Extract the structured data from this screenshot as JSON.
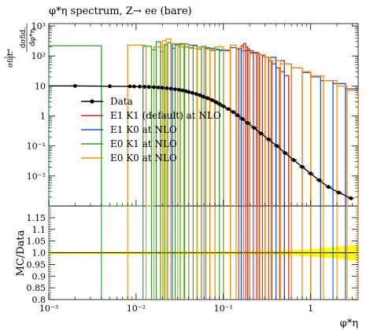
{
  "chart_data": [
    {
      "type": "step-histogram",
      "panel": "main",
      "title": "φ*η spectrum, Z→ ee (bare)",
      "ylabel_num": "1",
      "ylabel_den": "σfid.",
      "ylabel_frac_num": "dσfid.",
      "ylabel_frac_den": "dφ*η",
      "xscale": "log",
      "yscale": "log",
      "xlim": [
        0.001,
        3.5
      ],
      "ylim": [
        0.001,
        1200
      ],
      "x_ticks": [
        {
          "value": 0.001,
          "label": "10⁻³"
        },
        {
          "value": 0.01,
          "label": "10⁻²"
        },
        {
          "value": 0.1,
          "label": "10⁻¹"
        },
        {
          "value": 1,
          "label": "1"
        }
      ],
      "y_ticks": [
        {
          "value": 0.01,
          "label": "10⁻²"
        },
        {
          "value": 0.1,
          "label": "10⁻¹"
        },
        {
          "value": 1,
          "label": "1"
        },
        {
          "value": 10,
          "label": "10"
        },
        {
          "value": 100,
          "label": "10²"
        },
        {
          "value": 1000,
          "label": "10³"
        }
      ],
      "legend": [
        {
          "name": "Data",
          "color": "#000000",
          "marker": "dot"
        },
        {
          "name": "E1 K1 (default) at NLO",
          "color": "#e41a1c"
        },
        {
          "name": "E1 K0 at NLO",
          "color": "#1f4fe0"
        },
        {
          "name": "E0 K1 at NLO",
          "color": "#2ca02c"
        },
        {
          "name": "E0 K0 at NLO",
          "color": "#ff8c00"
        }
      ],
      "legend_position": "center-left",
      "data": {
        "x": [
          0.002,
          0.005,
          0.0085,
          0.0095,
          0.011,
          0.0125,
          0.014,
          0.016,
          0.018,
          0.02,
          0.0225,
          0.025,
          0.028,
          0.031,
          0.034,
          0.037,
          0.04,
          0.044,
          0.049,
          0.054,
          0.059,
          0.066,
          0.074,
          0.082,
          0.09,
          0.1,
          0.114,
          0.13,
          0.145,
          0.165,
          0.19,
          0.225,
          0.27,
          0.33,
          0.41,
          0.51,
          0.64,
          0.8,
          1.0,
          1.25,
          1.6,
          2.1,
          2.9
        ],
        "y": [
          10,
          9.8,
          9.7,
          9.6,
          9.5,
          9.4,
          9.3,
          9.1,
          8.9,
          8.7,
          8.4,
          8.1,
          7.8,
          7.5,
          7.1,
          6.7,
          6.3,
          5.9,
          5.4,
          4.9,
          4.4,
          3.9,
          3.4,
          2.9,
          2.5,
          2.1,
          1.7,
          1.35,
          1.05,
          0.8,
          0.58,
          0.4,
          0.26,
          0.165,
          0.1,
          0.058,
          0.034,
          0.02,
          0.012,
          0.0072,
          0.0043,
          0.0028,
          0.0018
        ]
      },
      "series": [
        {
          "name": "E1 K1 (default) at NLO",
          "color": "#e41a1c",
          "bins": [
            0.15,
            0.16,
            0.17,
            0.18,
            0.19,
            0.2,
            0.22,
            0.24,
            0.26,
            0.28,
            0.3,
            0.33,
            0.36,
            0.4,
            0.44,
            0.5,
            0.56
          ],
          "values": [
            180,
            220,
            260,
            200,
            170,
            150,
            130,
            120,
            110,
            100,
            90,
            70,
            55,
            40,
            30,
            22,
            16
          ]
        },
        {
          "name": "E1 K0 at NLO",
          "color": "#1f4fe0",
          "bins": [
            0.026,
            0.04,
            0.05,
            0.06,
            0.08,
            0.1,
            0.12,
            0.14,
            0.16,
            0.2,
            0.25,
            0.3,
            0.4,
            0.5,
            0.6,
            0.8,
            1.0,
            1.3,
            1.8,
            2.5,
            3.5
          ],
          "values": [
            250,
            230,
            200,
            180,
            160,
            150,
            190,
            170,
            150,
            130,
            110,
            90,
            70,
            55,
            40,
            28,
            20,
            15,
            12,
            8
          ]
        },
        {
          "name": "E0 K1 at NLO",
          "color": "#2ca02c",
          "bins": [
            0.001,
            0.004,
            0.012,
            0.015,
            0.017,
            0.019,
            0.021,
            0.023,
            0.025,
            0.028,
            0.032,
            0.036,
            0.04,
            0.045,
            0.05,
            0.056,
            0.063,
            0.07,
            0.08,
            0.09,
            0.1
          ],
          "values": [
            220,
            0.001,
            210,
            160,
            300,
            140,
            240,
            280,
            180,
            230,
            260,
            200,
            190,
            220,
            170,
            210,
            190,
            160,
            170,
            150
          ]
        },
        {
          "name": "E0 K0 at NLO",
          "color": "#ff8c00",
          "bins": [
            0.008,
            0.013,
            0.016,
            0.02,
            0.022,
            0.025,
            0.03,
            0.035,
            0.04,
            0.05,
            0.06,
            0.07,
            0.08,
            0.1,
            0.12,
            0.14,
            0.17,
            0.2,
            0.25,
            0.3,
            0.35,
            0.45,
            0.6,
            0.8,
            1.0,
            1.4,
            2.0,
            2.6,
            3.5
          ],
          "values": [
            230,
            0.001,
            200,
            320,
            370,
            260,
            200,
            240,
            180,
            200,
            170,
            150,
            200,
            160,
            230,
            180,
            140,
            120,
            110,
            90,
            70,
            55,
            40,
            30,
            22,
            15,
            10,
            7
          ]
        }
      ]
    },
    {
      "type": "ratio",
      "panel": "ratio",
      "ylabel": "MC/Data",
      "xlabel": "φ*η",
      "ylim": [
        0.8,
        1.2
      ],
      "y_ticks": [
        {
          "value": 0.8,
          "label": "0.8"
        },
        {
          "value": 0.85,
          "label": "0.85"
        },
        {
          "value": 0.9,
          "label": "0.9"
        },
        {
          "value": 0.95,
          "label": "0.95"
        },
        {
          "value": 1.0,
          "label": "1.0"
        },
        {
          "value": 1.05,
          "label": "1.05"
        },
        {
          "value": 1.1,
          "label": "1.1"
        },
        {
          "value": 1.15,
          "label": "1.15"
        }
      ],
      "band_color": "#ffff00",
      "band": {
        "x": [
          0.001,
          0.3,
          1.0,
          2.0,
          3.5
        ],
        "lo": [
          0.995,
          0.993,
          0.985,
          0.975,
          0.965
        ],
        "hi": [
          1.005,
          1.007,
          1.015,
          1.025,
          1.035
        ]
      }
    }
  ]
}
